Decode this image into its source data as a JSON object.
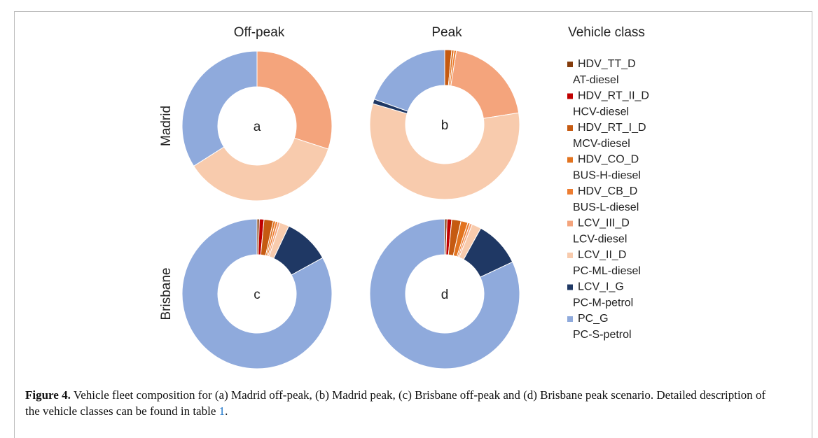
{
  "column_labels": [
    "Off-peak",
    "Peak"
  ],
  "row_labels": [
    "Madrid",
    "Brisbane"
  ],
  "legend": {
    "title": "Vehicle class",
    "items": [
      {
        "name": "HDV_TT_D",
        "description": "AT-diesel",
        "color": "#843c0c"
      },
      {
        "name": "HDV_RT_II_D",
        "description": "HCV-diesel",
        "color": "#c00000"
      },
      {
        "name": "HDV_RT_I_D",
        "description": "MCV-diesel",
        "color": "#c55a11"
      },
      {
        "name": "HDV_CO_D",
        "description": "BUS-H-diesel",
        "color": "#e2731f"
      },
      {
        "name": "HDV_CB_D",
        "description": "BUS-L-diesel",
        "color": "#ed7d31"
      },
      {
        "name": "LCV_III_D",
        "description": "LCV-diesel",
        "color": "#f4a47c"
      },
      {
        "name": "LCV_II_D",
        "description": "PC-ML-diesel",
        "color": "#f8cbad"
      },
      {
        "name": "LCV_I_G",
        "description": "PC-M-petrol",
        "color": "#1f3864"
      },
      {
        "name": "PC_G",
        "description": "PC-S-petrol",
        "color": "#8faadc"
      }
    ]
  },
  "chart_data": [
    {
      "type": "donut",
      "label": "a",
      "values": [
        0,
        0,
        0,
        0,
        0,
        30,
        36,
        0,
        34
      ]
    },
    {
      "type": "donut",
      "label": "b",
      "values": [
        0,
        0,
        1.5,
        0.5,
        0.5,
        20,
        57,
        1,
        19.5
      ]
    },
    {
      "type": "donut",
      "label": "c",
      "values": [
        0.5,
        1,
        2,
        0.5,
        0.5,
        0.5,
        2,
        10,
        83
      ]
    },
    {
      "type": "donut",
      "label": "d",
      "values": [
        0.5,
        1,
        2,
        1.5,
        0.5,
        0.5,
        2,
        10,
        82
      ]
    }
  ],
  "caption": {
    "label": "Figure 4.",
    "text": "Vehicle fleet composition for (a) Madrid off-peak, (b) Madrid peak, (c) Brisbane off-peak and (d) Brisbane peak scenario. Detailed description of the vehicle classes can be found in table",
    "link": "1",
    "end": "."
  }
}
